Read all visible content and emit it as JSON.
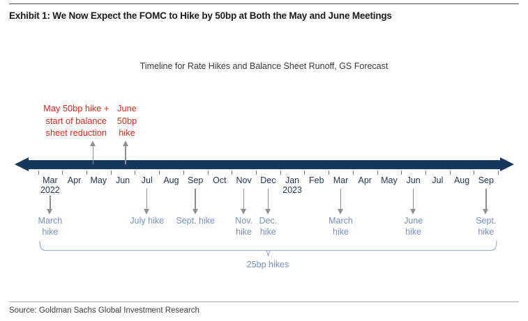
{
  "header": {
    "title": "Exhibit 1: We Now Expect the FOMC to Hike by 50bp at Both the May and June Meetings"
  },
  "chart_data": {
    "type": "timeline",
    "title": "Timeline for Rate Hikes and Balance Sheet Runoff, GS Forecast",
    "axis_range": [
      "Mar 2022",
      "Sep 2023"
    ],
    "months": [
      {
        "label": "Mar",
        "year": "2022"
      },
      {
        "label": "Apr"
      },
      {
        "label": "May"
      },
      {
        "label": "Jun"
      },
      {
        "label": "Jul"
      },
      {
        "label": "Aug"
      },
      {
        "label": "Sep"
      },
      {
        "label": "Oct"
      },
      {
        "label": "Nov"
      },
      {
        "label": "Dec"
      },
      {
        "label": "Jan",
        "year": "2023"
      },
      {
        "label": "Feb"
      },
      {
        "label": "Mar"
      },
      {
        "label": "Apr"
      },
      {
        "label": "May"
      },
      {
        "label": "Jun"
      },
      {
        "label": "Jul"
      },
      {
        "label": "Aug"
      },
      {
        "label": "Sep"
      }
    ],
    "hikes_25bp": [
      {
        "month_index": 0,
        "lines": [
          "March",
          "hike"
        ]
      },
      {
        "month_index": 4,
        "lines": [
          "July hike"
        ]
      },
      {
        "month_index": 6,
        "lines": [
          "Sept. hike"
        ]
      },
      {
        "month_index": 8,
        "lines": [
          "Nov.",
          "hike"
        ]
      },
      {
        "month_index": 9,
        "lines": [
          "Dec.",
          "hike"
        ]
      },
      {
        "month_index": 12,
        "lines": [
          "March",
          "hike"
        ]
      },
      {
        "month_index": 15,
        "lines": [
          "June",
          "hike"
        ]
      },
      {
        "month_index": 18,
        "lines": [
          "Sept.",
          "hike"
        ]
      }
    ],
    "hikes_50bp": [
      {
        "month_index": 2,
        "lines": [
          "May 50bp hike +",
          "start of balance",
          "sheet reduction"
        ],
        "arrow_dx": -8,
        "label_dx": -24
      },
      {
        "month_index": 3,
        "lines": [
          "June",
          "50bp",
          "hike"
        ],
        "arrow_dx": 4,
        "label_dx": 2
      }
    ],
    "bracket_label": "25bp hikes",
    "legend_position": "none",
    "colors": {
      "timeline_bar": "#17375d",
      "hike_label_blue": "#7592c4",
      "annotation_red": "#e8261c",
      "arrow_gray": "#8f8f8f",
      "bracket_blue": "#9cb3d3"
    }
  },
  "footer": {
    "source": "Source: Goldman Sachs Global Investment Research"
  }
}
